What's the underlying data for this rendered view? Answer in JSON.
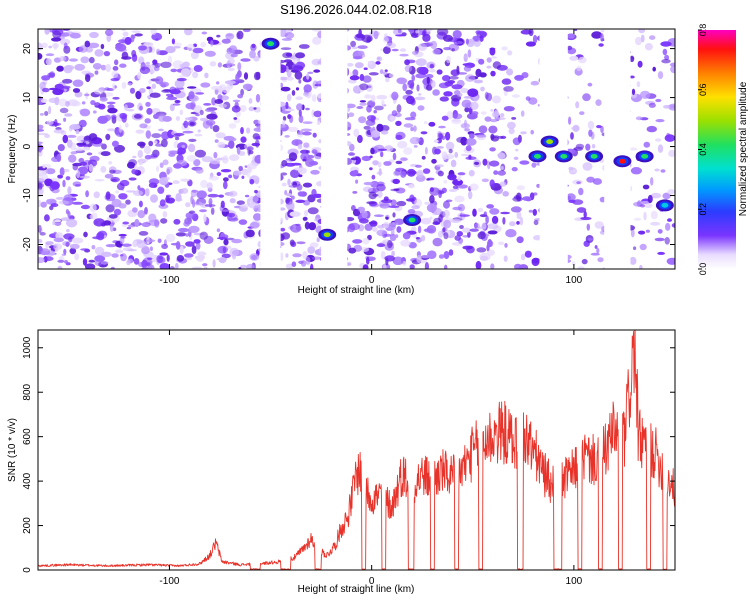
{
  "title": "S196.2026.044.02.08.R18",
  "colors": {
    "snr_line": "#e8332a",
    "axis": "#000000",
    "background": "#ffffff",
    "spectrogram_base": "#7a35ff",
    "spectrogram_light": "#d9c2ff"
  },
  "chart_data": [
    {
      "type": "heatmap",
      "title": "",
      "xlabel": "Height of straight line (km)",
      "ylabel": "Frequency (Hz)",
      "xlim": [
        -165,
        150
      ],
      "ylim": [
        -25,
        24
      ],
      "xticks": [
        -100,
        0,
        100
      ],
      "yticks": [
        -20,
        -10,
        0,
        10,
        20
      ],
      "colorbar": {
        "label": "Normalized spectral amplitude",
        "range": [
          0.0,
          0.8
        ],
        "ticks": [
          "0.0",
          "0.2",
          "0.4",
          "0.6",
          "0.8"
        ],
        "colormap": "rainbow (purple-blue-cyan-green-yellow-red-magenta)"
      },
      "blank_bands": [
        {
          "x": [
            -55,
            -45
          ]
        },
        {
          "x": [
            -25,
            -12
          ]
        },
        {
          "x": [
            83,
            97
          ]
        },
        {
          "x": [
            115,
            128
          ]
        }
      ],
      "hotspots": [
        {
          "x": -50,
          "y": 21,
          "amplitude": 0.4
        },
        {
          "x": -22,
          "y": -18,
          "amplitude": 0.45
        },
        {
          "x": 20,
          "y": -15,
          "amplitude": 0.35
        },
        {
          "x": 82,
          "y": -2,
          "amplitude": 0.4
        },
        {
          "x": 88,
          "y": 1,
          "amplitude": 0.45
        },
        {
          "x": 95,
          "y": -2,
          "amplitude": 0.4
        },
        {
          "x": 110,
          "y": -2,
          "amplitude": 0.35
        },
        {
          "x": 124,
          "y": -3,
          "amplitude": 0.8
        },
        {
          "x": 135,
          "y": -2,
          "amplitude": 0.4
        },
        {
          "x": 145,
          "y": -12,
          "amplitude": 0.3
        }
      ]
    },
    {
      "type": "line",
      "title": "",
      "xlabel": "Height of straight line (km)",
      "ylabel": "SNR (10 * v/v)",
      "xlim": [
        -165,
        150
      ],
      "ylim": [
        0,
        1080
      ],
      "xticks": [
        -100,
        0,
        100
      ],
      "yticks": [
        0,
        200,
        400,
        600,
        800,
        1000
      ],
      "series": [
        {
          "points": [
            [
              -165,
              20
            ],
            [
              -150,
              25
            ],
            [
              -130,
              20
            ],
            [
              -110,
              25
            ],
            [
              -95,
              20
            ],
            [
              -85,
              30
            ],
            [
              -80,
              70
            ],
            [
              -77,
              130
            ],
            [
              -74,
              40
            ],
            [
              -65,
              25
            ],
            [
              -55,
              30
            ],
            [
              -45,
              40
            ],
            [
              -38,
              60
            ],
            [
              -33,
              110
            ],
            [
              -30,
              150
            ],
            [
              -27,
              100
            ],
            [
              -22,
              70
            ],
            [
              -18,
              120
            ],
            [
              -15,
              200
            ],
            [
              -12,
              250
            ],
            [
              -10,
              330
            ],
            [
              -8,
              440
            ],
            [
              -6,
              480
            ],
            [
              -4,
              430
            ],
            [
              -2,
              370
            ],
            [
              0,
              340
            ],
            [
              5,
              360
            ],
            [
              10,
              300
            ],
            [
              15,
              460
            ],
            [
              20,
              410
            ],
            [
              25,
              450
            ],
            [
              30,
              430
            ],
            [
              35,
              470
            ],
            [
              40,
              440
            ],
            [
              45,
              480
            ],
            [
              50,
              560
            ],
            [
              55,
              610
            ],
            [
              60,
              640
            ],
            [
              65,
              660
            ],
            [
              70,
              610
            ],
            [
              75,
              640
            ],
            [
              80,
              570
            ],
            [
              85,
              460
            ],
            [
              90,
              400
            ],
            [
              95,
              430
            ],
            [
              100,
              470
            ],
            [
              105,
              540
            ],
            [
              110,
              520
            ],
            [
              115,
              560
            ],
            [
              120,
              660
            ],
            [
              125,
              620
            ],
            [
              128,
              900
            ],
            [
              130,
              1070
            ],
            [
              132,
              620
            ],
            [
              135,
              600
            ],
            [
              140,
              560
            ],
            [
              145,
              460
            ],
            [
              150,
              380
            ]
          ],
          "dropouts": [
            [
              -60,
              -55
            ],
            [
              -45,
              -40
            ],
            [
              -28,
              -25
            ],
            [
              -5,
              -3
            ],
            [
              5,
              7
            ],
            [
              18,
              21
            ],
            [
              29,
              31
            ],
            [
              41,
              43
            ],
            [
              53,
              55
            ],
            [
              72,
              75
            ],
            [
              90,
              94
            ],
            [
              102,
              104
            ],
            [
              112,
              114
            ],
            [
              122,
              124
            ],
            [
              136,
              138
            ],
            [
              144,
              146
            ]
          ]
        }
      ]
    }
  ]
}
